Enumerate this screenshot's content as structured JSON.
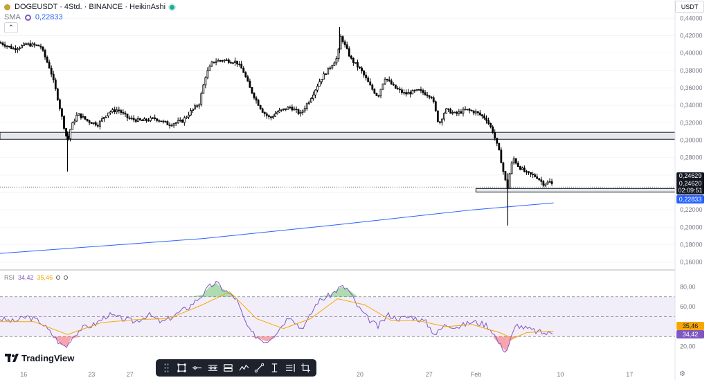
{
  "header": {
    "symbol_text": "DOGEUSDT · 4Std. · BINANCE · HeikinAshi",
    "sma_label": "SMA",
    "sma_value": "0,22833",
    "currency": "USDT"
  },
  "price_labels": {
    "last_price": "0,24629",
    "close_price": "0,24620",
    "countdown": "02:09:51",
    "sma_price": "0,22833"
  },
  "rsi": {
    "label": "RSI",
    "value": "34,42",
    "ma_value": "35,46",
    "axis_labels": [
      "80,00",
      "60,00",
      "40,00",
      "20,00"
    ],
    "axis_values": [
      80,
      60,
      40,
      20
    ],
    "upper_band": 70,
    "mid_band": 50,
    "lower_band": 30,
    "badge_ma": "35,46",
    "badge_rsi": "34,42"
  },
  "brand": {
    "logo_text": "TradingView"
  },
  "colors": {
    "candle": "#000000",
    "sma": "#2962ff",
    "rsi": "#7e57c2",
    "rsi_ma": "#f7a600",
    "rsi_band": "#ede7f6",
    "zone_fill": "#d1d4dc",
    "overbought": "#4caf50",
    "oversold": "#f23645"
  },
  "toolbar": {
    "icons": [
      "select-rectangle-icon",
      "horizontal-line-icon",
      "date-range-icon",
      "price-range-icon",
      "pattern-icon",
      "trend-line-icon",
      "price-measure-icon",
      "text-lines-icon",
      "crop-icon"
    ]
  },
  "chart_data": {
    "type": "candlestick",
    "ylim": [
      0.155,
      0.445
    ],
    "yticks": [
      "0,44000",
      "0,42000",
      "0,40000",
      "0,38000",
      "0,36000",
      "0,34000",
      "0,32000",
      "0,30000",
      "0,28000",
      "0,26000",
      "0,24000",
      "0,22000",
      "0,20000",
      "0,18000",
      "0,16000"
    ],
    "ytick_values": [
      0.44,
      0.42,
      0.4,
      0.38,
      0.36,
      0.34,
      0.32,
      0.3,
      0.28,
      0.26,
      0.24,
      0.22,
      0.2,
      0.18,
      0.16
    ],
    "xticks": [
      "16",
      "23",
      "27",
      "20",
      "27",
      "Feb",
      "10",
      "17"
    ],
    "xtick_positions": [
      0.0352,
      0.1357,
      0.1924,
      0.5332,
      0.6357,
      0.7051,
      0.8301,
      0.9326
    ],
    "close_path": [
      [
        0,
        0.412
      ],
      [
        0.02,
        0.405
      ],
      [
        0.04,
        0.41
      ],
      [
        0.06,
        0.408
      ],
      [
        0.075,
        0.38
      ],
      [
        0.085,
        0.35
      ],
      [
        0.095,
        0.315
      ],
      [
        0.1,
        0.298
      ],
      [
        0.105,
        0.315
      ],
      [
        0.115,
        0.33
      ],
      [
        0.13,
        0.322
      ],
      [
        0.145,
        0.318
      ],
      [
        0.16,
        0.332
      ],
      [
        0.175,
        0.335
      ],
      [
        0.19,
        0.325
      ],
      [
        0.21,
        0.322
      ],
      [
        0.23,
        0.325
      ],
      [
        0.25,
        0.318
      ],
      [
        0.27,
        0.322
      ],
      [
        0.285,
        0.335
      ],
      [
        0.295,
        0.342
      ],
      [
        0.305,
        0.375
      ],
      [
        0.315,
        0.39
      ],
      [
        0.33,
        0.392
      ],
      [
        0.35,
        0.39
      ],
      [
        0.36,
        0.38
      ],
      [
        0.37,
        0.36
      ],
      [
        0.38,
        0.345
      ],
      [
        0.39,
        0.332
      ],
      [
        0.4,
        0.325
      ],
      [
        0.41,
        0.332
      ],
      [
        0.43,
        0.338
      ],
      [
        0.445,
        0.33
      ],
      [
        0.46,
        0.348
      ],
      [
        0.475,
        0.37
      ],
      [
        0.49,
        0.385
      ],
      [
        0.5,
        0.395
      ],
      [
        0.505,
        0.42
      ],
      [
        0.51,
        0.41
      ],
      [
        0.52,
        0.393
      ],
      [
        0.535,
        0.38
      ],
      [
        0.55,
        0.36
      ],
      [
        0.56,
        0.35
      ],
      [
        0.57,
        0.372
      ],
      [
        0.585,
        0.36
      ],
      [
        0.6,
        0.353
      ],
      [
        0.62,
        0.357
      ],
      [
        0.64,
        0.35
      ],
      [
        0.65,
        0.318
      ],
      [
        0.66,
        0.335
      ],
      [
        0.675,
        0.33
      ],
      [
        0.69,
        0.335
      ],
      [
        0.705,
        0.332
      ],
      [
        0.72,
        0.325
      ],
      [
        0.73,
        0.31
      ],
      [
        0.74,
        0.285
      ],
      [
        0.748,
        0.255
      ],
      [
        0.752,
        0.245
      ],
      [
        0.755,
        0.262
      ],
      [
        0.76,
        0.28
      ],
      [
        0.768,
        0.27
      ],
      [
        0.78,
        0.262
      ],
      [
        0.795,
        0.258
      ],
      [
        0.805,
        0.25
      ],
      [
        0.815,
        0.252
      ],
      [
        0.82,
        0.247
      ]
    ],
    "wicks": [
      {
        "x": 0.1,
        "high": 0.31,
        "low": 0.264
      },
      {
        "x": 0.503,
        "high": 0.43,
        "low": 0.4
      },
      {
        "x": 0.752,
        "high": 0.262,
        "low": 0.202
      }
    ],
    "sma_series": [
      [
        0,
        0.17
      ],
      [
        0.3,
        0.187
      ],
      [
        0.5,
        0.203
      ],
      [
        0.7,
        0.22
      ],
      [
        0.82,
        0.228
      ]
    ],
    "resistance_zone": {
      "low": 0.301,
      "high": 0.309,
      "x_from": 0.0,
      "x_to": 1.0
    },
    "support_zone": {
      "low": 0.2405,
      "high": 0.2445,
      "x_from": 0.705,
      "x_to": 1.0
    },
    "last_price_value": 0.2462,
    "rsi_series": [
      [
        0,
        48
      ],
      [
        0.02,
        45
      ],
      [
        0.04,
        50
      ],
      [
        0.06,
        45
      ],
      [
        0.08,
        30
      ],
      [
        0.09,
        22
      ],
      [
        0.1,
        20
      ],
      [
        0.105,
        28
      ],
      [
        0.12,
        38
      ],
      [
        0.14,
        42
      ],
      [
        0.16,
        52
      ],
      [
        0.18,
        48
      ],
      [
        0.2,
        45
      ],
      [
        0.22,
        52
      ],
      [
        0.24,
        44
      ],
      [
        0.26,
        52
      ],
      [
        0.28,
        60
      ],
      [
        0.3,
        72
      ],
      [
        0.31,
        80
      ],
      [
        0.32,
        84
      ],
      [
        0.33,
        78
      ],
      [
        0.35,
        68
      ],
      [
        0.36,
        50
      ],
      [
        0.37,
        35
      ],
      [
        0.385,
        28
      ],
      [
        0.395,
        25
      ],
      [
        0.41,
        35
      ],
      [
        0.43,
        52
      ],
      [
        0.445,
        38
      ],
      [
        0.455,
        45
      ],
      [
        0.47,
        65
      ],
      [
        0.49,
        72
      ],
      [
        0.505,
        80
      ],
      [
        0.515,
        78
      ],
      [
        0.53,
        60
      ],
      [
        0.545,
        48
      ],
      [
        0.56,
        40
      ],
      [
        0.575,
        52
      ],
      [
        0.59,
        48
      ],
      [
        0.61,
        50
      ],
      [
        0.63,
        45
      ],
      [
        0.645,
        32
      ],
      [
        0.66,
        42
      ],
      [
        0.68,
        40
      ],
      [
        0.7,
        45
      ],
      [
        0.72,
        42
      ],
      [
        0.73,
        35
      ],
      [
        0.74,
        22
      ],
      [
        0.75,
        15
      ],
      [
        0.755,
        25
      ],
      [
        0.765,
        42
      ],
      [
        0.78,
        38
      ],
      [
        0.795,
        35
      ],
      [
        0.81,
        33
      ],
      [
        0.82,
        34.42
      ]
    ],
    "rsi_ma_series": [
      [
        0,
        45
      ],
      [
        0.05,
        45
      ],
      [
        0.1,
        32
      ],
      [
        0.15,
        44
      ],
      [
        0.2,
        47
      ],
      [
        0.25,
        48
      ],
      [
        0.3,
        62
      ],
      [
        0.34,
        75
      ],
      [
        0.38,
        48
      ],
      [
        0.42,
        38
      ],
      [
        0.46,
        48
      ],
      [
        0.5,
        68
      ],
      [
        0.54,
        62
      ],
      [
        0.58,
        46
      ],
      [
        0.62,
        46
      ],
      [
        0.66,
        40
      ],
      [
        0.7,
        42
      ],
      [
        0.74,
        34
      ],
      [
        0.76,
        28
      ],
      [
        0.78,
        34
      ],
      [
        0.82,
        35.46
      ]
    ]
  }
}
